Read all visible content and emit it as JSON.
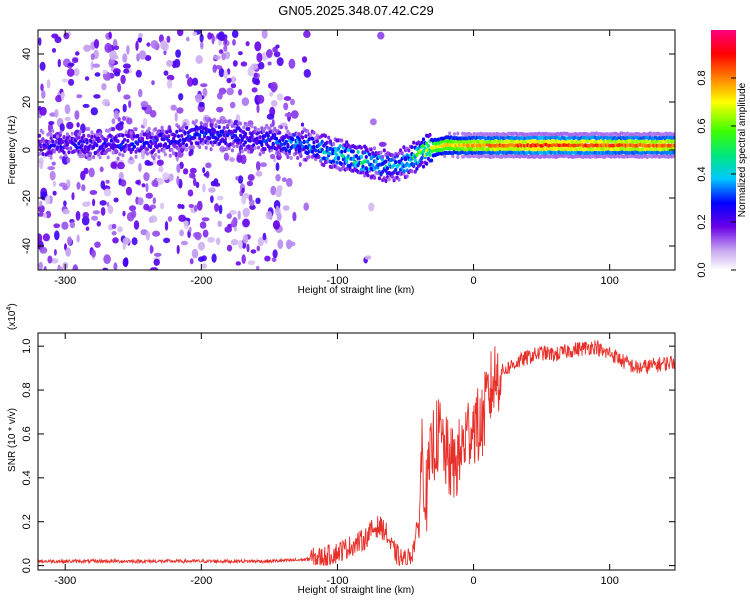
{
  "title": "GN05.2025.348.07.42.C29",
  "chart_data": [
    {
      "type": "heatmap",
      "xlabel": "Height of straight line (km)",
      "ylabel": "Frequency (Hz)",
      "xlim": [
        -320,
        148
      ],
      "ylim": [
        -50,
        50
      ],
      "xticks": [
        -300,
        -200,
        -100,
        0,
        100
      ],
      "yticks": [
        -40,
        -20,
        0,
        20,
        40
      ],
      "colorbar": {
        "label": "Normalized spectral amplitude",
        "range": [
          0,
          1
        ],
        "ticks": [
          0.0,
          0.2,
          0.4,
          0.6,
          0.8
        ],
        "tick_labels": [
          "0.0",
          "0.2",
          "0.4",
          "0.6",
          "0.8"
        ]
      },
      "ridge": {
        "x": [
          -320,
          -230,
          -200,
          -150,
          -120,
          -100,
          -85,
          -70,
          -60,
          -50,
          -40,
          -30,
          -20,
          0,
          20,
          50,
          80,
          100,
          120,
          148
        ],
        "frequency_hz": [
          2,
          3,
          7,
          4,
          2,
          -2,
          -4,
          -6,
          -7,
          -5,
          -2,
          1,
          2,
          2,
          2,
          2,
          2,
          2,
          2,
          2
        ],
        "normalized_amplitude": [
          0.25,
          0.3,
          0.3,
          0.3,
          0.4,
          0.45,
          0.5,
          0.45,
          0.4,
          0.45,
          0.6,
          0.7,
          0.75,
          0.8,
          0.85,
          0.9,
          0.88,
          0.86,
          0.85,
          0.85
        ]
      }
    },
    {
      "type": "line",
      "xlabel": "Height of straight line (km)",
      "ylabel": "SNR (10 * v/v)",
      "y_multiplier": "(x10⁴)",
      "y_multiplier_base": "(x10",
      "y_multiplier_exp": "4",
      "y_multiplier_close": ")",
      "xlim": [
        -320,
        148
      ],
      "ylim": [
        -0.02,
        1.06
      ],
      "xticks": [
        -300,
        -200,
        -100,
        0,
        100
      ],
      "yticks": [
        0.0,
        0.2,
        0.4,
        0.6,
        0.8,
        1.0
      ],
      "ytick_labels": [
        "0.0",
        "0.2",
        "0.4",
        "0.6",
        "0.8",
        "1.0"
      ],
      "color": "#e8302a",
      "series": [
        {
          "x": [
            -320,
            -250,
            -200,
            -150,
            -130,
            -120,
            -110,
            -100,
            -90,
            -80,
            -75,
            -70,
            -65,
            -60,
            -55,
            -50,
            -45,
            -40,
            -38,
            -35,
            -32,
            -30,
            -25,
            -20,
            -15,
            -10,
            -5,
            0,
            5,
            10,
            15,
            20,
            30,
            40,
            50,
            60,
            70,
            80,
            90,
            95,
            100,
            110,
            120,
            130,
            140,
            148
          ],
          "y": [
            0.02,
            0.02,
            0.02,
            0.02,
            0.025,
            0.03,
            0.04,
            0.06,
            0.09,
            0.12,
            0.16,
            0.18,
            0.16,
            0.08,
            0.04,
            0.02,
            0.06,
            0.2,
            0.55,
            0.3,
            0.45,
            0.55,
            0.6,
            0.5,
            0.45,
            0.5,
            0.6,
            0.65,
            0.62,
            0.75,
            0.85,
            0.88,
            0.92,
            0.95,
            0.97,
            0.96,
            0.98,
            0.99,
            1.0,
            0.97,
            0.97,
            0.93,
            0.9,
            0.91,
            0.92,
            0.93
          ]
        }
      ]
    }
  ]
}
